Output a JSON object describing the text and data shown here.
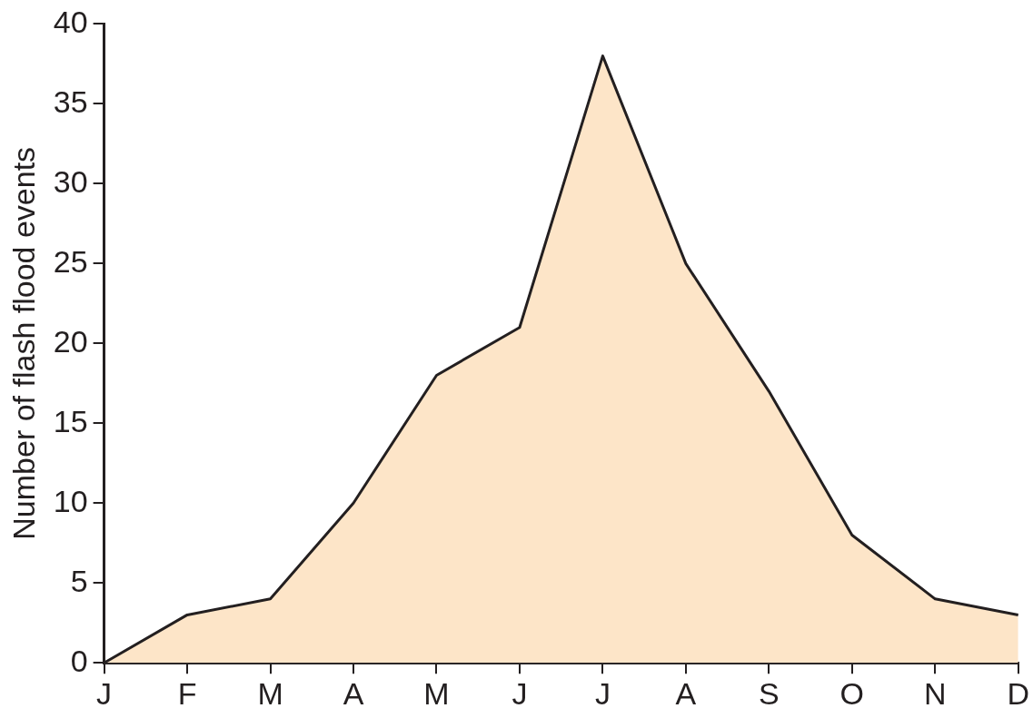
{
  "chart_data": {
    "type": "area",
    "ylabel": "Number of flash flood events",
    "categories": [
      "J",
      "F",
      "M",
      "A",
      "M",
      "J",
      "J",
      "A",
      "S",
      "O",
      "N",
      "D"
    ],
    "values": [
      0,
      3,
      4,
      10,
      18,
      21,
      38,
      25,
      17,
      8,
      4,
      3
    ],
    "color": "#fde5c8",
    "ylim": [
      0,
      40
    ],
    "yticks": [
      0,
      5,
      10,
      15,
      20,
      25,
      30,
      35,
      40
    ]
  }
}
